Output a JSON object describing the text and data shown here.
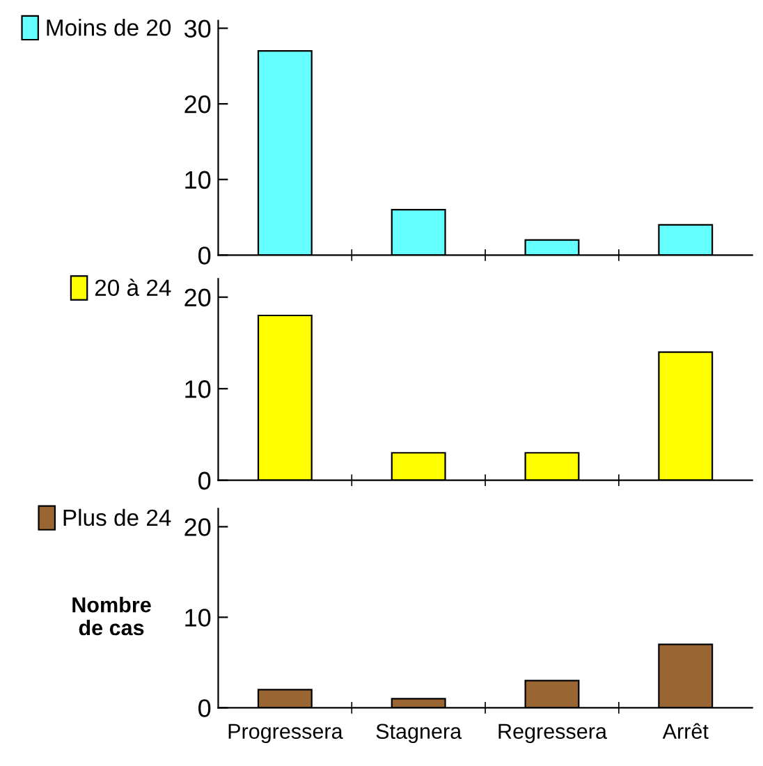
{
  "chart_data": [
    {
      "type": "bar",
      "categories": [
        null,
        null,
        null,
        null
      ],
      "series": [
        {
          "name": "Moins de 20",
          "color": "#66ffff",
          "values": [
            27,
            6,
            2,
            4
          ]
        }
      ],
      "ylim": [
        0,
        31
      ],
      "yticks": [
        0,
        10,
        20,
        30
      ],
      "tick_labels": "y",
      "legend": "left",
      "grid": false
    },
    {
      "type": "bar",
      "categories": [
        null,
        null,
        null,
        null
      ],
      "series": [
        {
          "name": "20 à 24",
          "color": "#ffff00",
          "values": [
            18,
            3,
            3,
            14
          ]
        }
      ],
      "ylim": [
        0,
        22
      ],
      "yticks": [
        0,
        10,
        20
      ],
      "tick_labels": "y",
      "legend": "left",
      "grid": false
    },
    {
      "type": "bar",
      "categories": [
        "Progressera",
        "Stagnera",
        "Regressera",
        "Arrêt"
      ],
      "series": [
        {
          "name": "Plus de 24",
          "color": "#996633",
          "values": [
            2,
            1,
            3,
            7
          ]
        }
      ],
      "ylim": [
        0,
        22
      ],
      "yticks": [
        0,
        10,
        20
      ],
      "ylabel": "Nombre\nde cas",
      "legend": "left",
      "grid": false
    }
  ]
}
